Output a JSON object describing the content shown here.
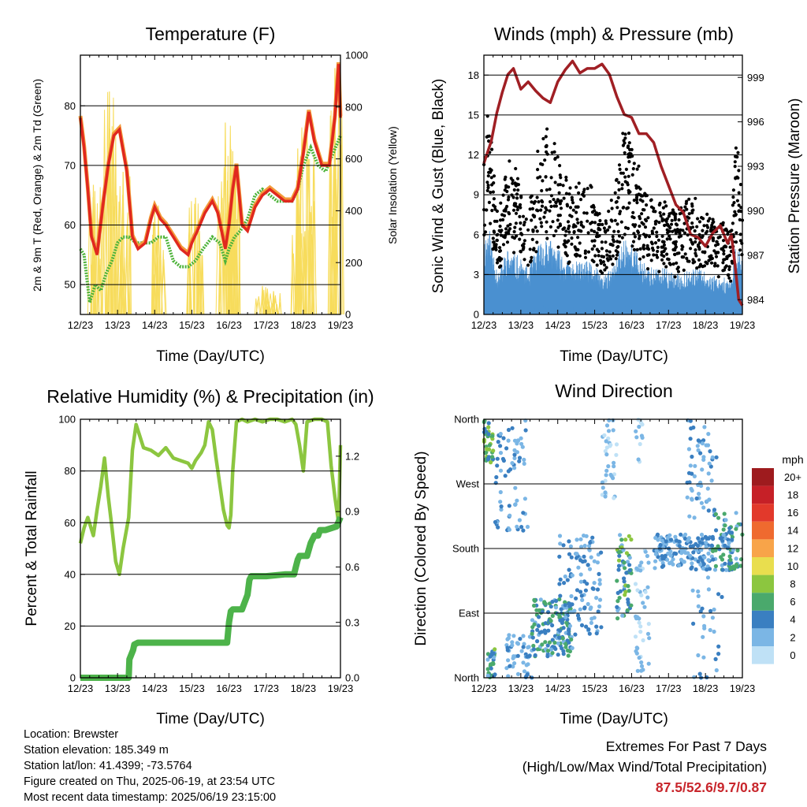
{
  "time_labels": [
    "12/23",
    "13/23",
    "14/23",
    "15/23",
    "16/23",
    "17/23",
    "18/23",
    "19/23"
  ],
  "colors": {
    "t2m": "#e0281f",
    "t9m": "#f39a3a",
    "td": "#4db33a",
    "solar": "#f7dc5c",
    "wind": "#4a90d0",
    "gust": "#000000",
    "pressure": "#a01f24",
    "rh": "#8cc640",
    "precip": "#4db34a"
  },
  "chart_data": [
    {
      "type": "line",
      "title": "Temperature (F)",
      "xlabel": "Time (Day/UTC)",
      "ylabel": "2m & 9m T (Red, Orange) & 2m Td (Green)",
      "y2label": "Solar Insolation (Yellow)",
      "xlim": [
        0,
        7
      ],
      "ylim": [
        45,
        88.5
      ],
      "yticks": [
        50,
        60,
        70,
        80
      ],
      "y2lim": [
        0,
        1000
      ],
      "y2ticks": [
        0,
        200,
        400,
        600,
        800,
        1000
      ],
      "grid": true,
      "series": [
        {
          "key": "t2m",
          "x": [
            0,
            0.1,
            0.2,
            0.3,
            0.45,
            0.6,
            0.75,
            0.9,
            1.05,
            1.25,
            1.4,
            1.55,
            1.75,
            1.9,
            2.0,
            2.15,
            2.3,
            2.5,
            2.7,
            2.9,
            3.0,
            3.15,
            3.35,
            3.55,
            3.7,
            3.9,
            4.0,
            4.1,
            4.2,
            4.35,
            4.5,
            4.7,
            4.9,
            5.1,
            5.3,
            5.5,
            5.7,
            5.85,
            6.0,
            6.15,
            6.3,
            6.5,
            6.7,
            6.85,
            6.95,
            7.0
          ],
          "y": [
            78,
            73,
            66,
            58,
            55,
            63,
            70,
            75,
            76,
            69,
            58,
            56,
            57,
            61,
            63,
            61,
            60,
            58,
            56,
            55,
            57,
            59,
            62,
            64,
            62,
            56,
            60,
            66,
            70,
            60,
            59,
            63,
            65,
            66,
            65,
            64,
            64,
            66,
            72,
            79,
            74,
            70,
            70,
            78,
            87,
            78
          ]
        },
        {
          "key": "td",
          "x": [
            0,
            0.1,
            0.25,
            0.4,
            0.55,
            0.7,
            0.85,
            1.0,
            1.15,
            1.3,
            1.5,
            1.7,
            1.9,
            2.1,
            2.3,
            2.5,
            2.7,
            2.9,
            3.1,
            3.3,
            3.55,
            3.75,
            3.9,
            4.0,
            4.15,
            4.3,
            4.5,
            4.7,
            4.9,
            5.1,
            5.3,
            5.5,
            5.7,
            5.85,
            6.0,
            6.2,
            6.4,
            6.6,
            6.8,
            7.0
          ],
          "y": [
            56,
            55,
            47,
            50,
            49,
            52,
            54,
            57,
            58,
            58,
            57,
            57,
            57,
            58,
            58,
            54,
            53,
            53,
            54,
            56,
            58,
            57,
            54,
            56,
            58,
            59,
            61,
            65,
            66,
            65,
            64,
            64,
            64,
            66,
            70,
            73,
            70,
            69,
            72,
            75
          ]
        }
      ],
      "solar_peaks": [
        {
          "x": 0.35,
          "y": 500
        },
        {
          "x": 0.78,
          "y": 860
        },
        {
          "x": 1.15,
          "y": 550
        },
        {
          "x": 2.1,
          "y": 420
        },
        {
          "x": 3.1,
          "y": 450
        },
        {
          "x": 3.9,
          "y": 740
        },
        {
          "x": 4.1,
          "y": 630
        },
        {
          "x": 4.9,
          "y": 110
        },
        {
          "x": 5.2,
          "y": 90
        },
        {
          "x": 5.85,
          "y": 640
        },
        {
          "x": 6.1,
          "y": 760
        },
        {
          "x": 6.85,
          "y": 950
        }
      ]
    },
    {
      "type": "scatter",
      "title": "Winds (mph) & Pressure (mb)",
      "xlabel": "Time (Day/UTC)",
      "ylabel": "Sonic Wind & Gust (Blue, Black)",
      "y2label": "Station Pressure (Maroon)",
      "xlim": [
        0,
        7
      ],
      "ylim": [
        0,
        19.5
      ],
      "yticks": [
        0,
        3,
        6,
        9,
        12,
        15,
        18
      ],
      "y2lim": [
        983,
        1000.5
      ],
      "y2ticks": [
        984,
        987,
        990,
        993,
        996,
        999
      ],
      "grid": true,
      "pressure": {
        "x": [
          0,
          0.2,
          0.35,
          0.5,
          0.65,
          0.8,
          1.0,
          1.2,
          1.4,
          1.6,
          1.8,
          2.0,
          2.2,
          2.4,
          2.6,
          2.8,
          3.0,
          3.2,
          3.4,
          3.6,
          3.8,
          4.0,
          4.2,
          4.4,
          4.6,
          4.8,
          5.0,
          5.2,
          5.4,
          5.6,
          5.8,
          6.0,
          6.2,
          6.4,
          6.6,
          6.7,
          6.8,
          6.9,
          7.0
        ],
        "y": [
          993.2,
          994.7,
          996.6,
          998.0,
          999.2,
          999.6,
          998.2,
          998.7,
          998.1,
          997.6,
          997.3,
          998.7,
          999.5,
          1000.1,
          999.3,
          999.6,
          999.6,
          999.9,
          999.2,
          997.7,
          996.5,
          996.3,
          995.2,
          995.2,
          994.6,
          993.0,
          991.7,
          990.4,
          989.9,
          988.4,
          988.2,
          987.6,
          988.5,
          989.0,
          987.8,
          988.4,
          986.4,
          984.0,
          983.6
        ]
      }
    },
    {
      "type": "line",
      "title": "Relative Humidity (%) & Precipitation (in)",
      "xlabel": "Time (Day/UTC)",
      "ylabel": "Percent & Total Rainfall",
      "xlim": [
        0,
        7
      ],
      "ylim": [
        0,
        100
      ],
      "yticks": [
        0,
        20,
        40,
        60,
        80,
        100
      ],
      "y2lim": [
        0,
        1.4
      ],
      "y2ticks": [
        0.0,
        0.3,
        0.6,
        0.9,
        1.2
      ],
      "y2ticklabels": [
        "0.0",
        "0.3",
        "0.6",
        "0.9",
        "1.2"
      ],
      "grid": true,
      "series": [
        {
          "key": "rh",
          "x": [
            0,
            0.1,
            0.2,
            0.35,
            0.45,
            0.55,
            0.65,
            0.75,
            0.85,
            0.95,
            1.05,
            1.15,
            1.3,
            1.4,
            1.5,
            1.7,
            1.9,
            2.1,
            2.3,
            2.5,
            2.7,
            2.9,
            3.0,
            3.1,
            3.25,
            3.35,
            3.45,
            3.55,
            3.65,
            3.75,
            3.85,
            3.95,
            4.0,
            4.05,
            4.1,
            4.2,
            4.35,
            4.5,
            4.7,
            4.9,
            5.1,
            5.3,
            5.5,
            5.7,
            5.8,
            5.9,
            6.0,
            6.1,
            6.3,
            6.5,
            6.65,
            6.75,
            6.85,
            6.95,
            7.0
          ],
          "y": [
            52,
            58,
            62,
            55,
            65,
            74,
            85,
            70,
            58,
            45,
            40,
            50,
            62,
            88,
            98,
            89,
            88,
            86,
            89,
            85,
            84,
            83,
            81,
            84,
            87,
            90,
            99,
            96,
            85,
            75,
            65,
            59,
            58,
            63,
            80,
            99,
            100,
            99,
            100,
            99,
            100,
            100,
            99,
            100,
            98,
            90,
            80,
            99,
            100,
            100,
            99,
            82,
            70,
            60,
            90
          ]
        },
        {
          "key": "precip",
          "x": [
            0,
            1.3,
            1.32,
            1.42,
            1.45,
            1.55,
            1.6,
            1.7,
            2.0,
            3.0,
            3.95,
            4.0,
            4.05,
            4.1,
            4.15,
            4.25,
            4.35,
            4.5,
            4.55,
            4.6,
            4.7,
            5.0,
            5.5,
            5.75,
            5.8,
            5.85,
            5.9,
            6.1,
            6.2,
            6.3,
            6.4,
            6.45,
            6.5,
            6.6,
            6.9,
            7.0
          ],
          "y": [
            0,
            0,
            0.1,
            0.15,
            0.18,
            0.19,
            0.19,
            0.19,
            0.19,
            0.19,
            0.19,
            0.3,
            0.36,
            0.37,
            0.37,
            0.37,
            0.37,
            0.45,
            0.53,
            0.55,
            0.55,
            0.55,
            0.56,
            0.56,
            0.6,
            0.64,
            0.66,
            0.66,
            0.73,
            0.77,
            0.77,
            0.8,
            0.8,
            0.8,
            0.82,
            0.87
          ]
        }
      ]
    },
    {
      "type": "scatter",
      "title": "Wind Direction",
      "xlabel": "Time (Day/UTC)",
      "ylabel": "Direction (Colored By Speed)",
      "xlim": [
        0,
        7
      ],
      "ylim": [
        0,
        360
      ],
      "yticks": [
        0,
        90,
        180,
        270,
        360
      ],
      "yticklabels": [
        "North",
        "East",
        "South",
        "West",
        "North"
      ],
      "grid": true,
      "legend_title": "mph",
      "legend_labels": [
        "20+",
        "18",
        "16",
        "14",
        "12",
        "10",
        "8",
        "6",
        "4",
        "2",
        "0"
      ],
      "legend_colors": [
        "#9e1b1e",
        "#c62027",
        "#e2392b",
        "#ef6a2f",
        "#f8a449",
        "#e9de4e",
        "#8cc63f",
        "#4aa96c",
        "#3a7fc1",
        "#7bb6e5",
        "#bfe1f6"
      ]
    }
  ],
  "info": {
    "location": "Location: Brewster",
    "elevation": "Station elevation: 185.349 m",
    "latlon": "Station lat/lon: 41.4399; -73.5764",
    "created": "Figure created on Thu, 2025-06-19, at 23:54 UTC",
    "recent": "Most recent data timestamp: 2025/06/19 23:15:00"
  },
  "extremes": {
    "title": "Extremes For Past 7 Days",
    "subtitle": "(High/Low/Max Wind/Total Precipitation)",
    "value": "87.5/52.6/9.7/0.87"
  }
}
